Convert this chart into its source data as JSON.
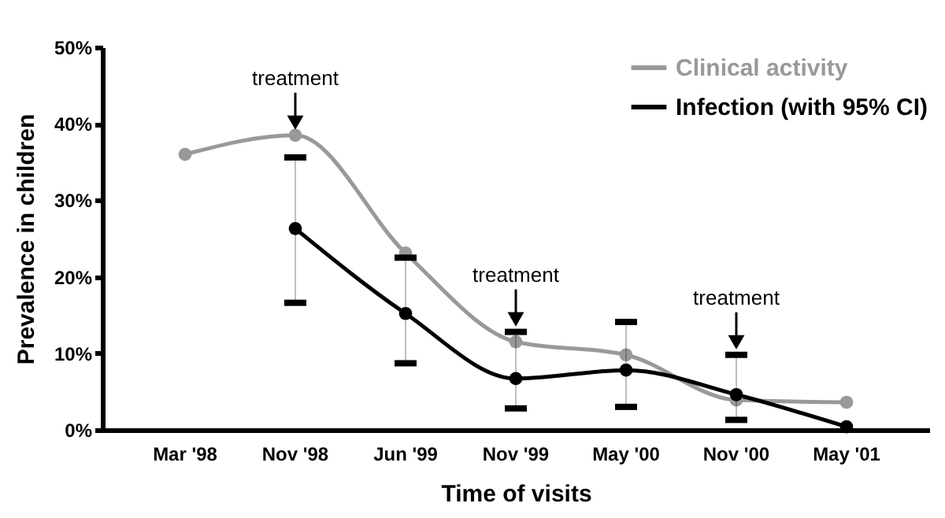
{
  "chart_data": {
    "type": "line",
    "xlabel": "Time of visits",
    "ylabel": "Prevalence in children",
    "categories": [
      "Mar '98",
      "Nov '98",
      "Jun '99",
      "Nov '99",
      "May '00",
      "Nov '00",
      "May '01"
    ],
    "series": [
      {
        "name": "Clinical activity",
        "color": "#999999",
        "values": [
          36,
          38.5,
          23.1,
          11.5,
          9.8,
          3.9,
          3.6
        ]
      },
      {
        "name": "Infection (with 95% CI)",
        "color": "#000000",
        "values": [
          null,
          26.3,
          15.2,
          6.7,
          7.8,
          4.6,
          0.4
        ],
        "errors": [
          null,
          [
            16.6,
            35.6
          ],
          [
            8.7,
            22.5
          ],
          [
            2.8,
            12.8
          ],
          [
            3.0,
            14.1
          ],
          [
            1.3,
            9.8
          ],
          null
        ]
      }
    ],
    "ylim": [
      0,
      50
    ],
    "yticks": [
      {
        "value": 0,
        "label": "0%"
      },
      {
        "value": 10,
        "label": "10%"
      },
      {
        "value": 20,
        "label": "20%"
      },
      {
        "value": 30,
        "label": "30%"
      },
      {
        "value": 40,
        "label": "40%"
      },
      {
        "value": 50,
        "label": "50%"
      }
    ],
    "annotations": [
      {
        "text": "treatment",
        "x": "Nov '98",
        "y": 38.5
      },
      {
        "text": "treatment",
        "x": "Nov '99",
        "y": 12.8
      },
      {
        "text": "treatment",
        "x": "Nov '00",
        "y": 9.8
      }
    ],
    "legend": "top right",
    "marker": "circle",
    "line_style": "solid"
  }
}
